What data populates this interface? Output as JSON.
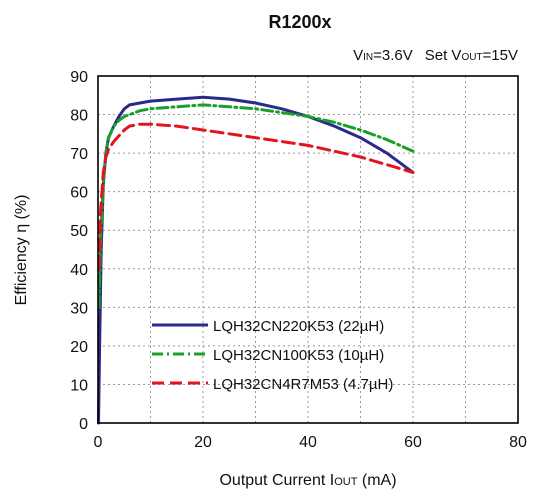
{
  "chart_data": {
    "type": "line",
    "title": "R1200x",
    "subtitle": {
      "vin_main": "V",
      "vin_sub": "IN",
      "vin_rest": "=3.6V",
      "set": "Set V",
      "vout_sub": "OUT",
      "vout_rest": "=15V"
    },
    "xlabel": {
      "main": "Output Current I",
      "sub": "OUT",
      "rest": " (mA)"
    },
    "ylabel": "Efficiency η (%)",
    "xlim": [
      0,
      80
    ],
    "ylim": [
      0,
      90
    ],
    "xticks": [
      "0",
      "20",
      "40",
      "60",
      "80"
    ],
    "yticks": [
      "0",
      "10",
      "20",
      "30",
      "40",
      "50",
      "60",
      "70",
      "80",
      "90"
    ],
    "grid": true,
    "legend_position": "bottom-right",
    "series": [
      {
        "name": "LQH32CN220K53 (22µH)",
        "color": "#2b2a8c",
        "dash": "solid",
        "x": [
          0.1,
          0.3,
          0.6,
          1,
          1.5,
          2,
          3,
          4,
          5,
          6,
          8,
          10,
          15,
          20,
          25,
          30,
          35,
          40,
          45,
          50,
          55,
          60
        ],
        "y": [
          0,
          20,
          45,
          62,
          70,
          74,
          77,
          79.5,
          81.5,
          82.5,
          83,
          83.5,
          84,
          84.5,
          84,
          83,
          81.5,
          79.5,
          77,
          74,
          70,
          65
        ]
      },
      {
        "name": "LQH32CN100K53 (10µH)",
        "color": "#1aa02a",
        "dash": "dashdot",
        "x": [
          0.2,
          0.5,
          1,
          1.5,
          2,
          3,
          4,
          5,
          6,
          8,
          10,
          15,
          20,
          25,
          30,
          35,
          40,
          45,
          50,
          55,
          60
        ],
        "y": [
          30,
          48,
          62,
          70,
          74,
          77,
          78.5,
          79.5,
          80,
          81,
          81.5,
          82,
          82.5,
          82,
          81.5,
          80.5,
          79.5,
          78,
          76,
          73.5,
          70.5
        ]
      },
      {
        "name": "LQH32CN4R7M53 (4.7µH)",
        "color": "#e3141e",
        "dash": "dashed",
        "x": [
          0.2,
          0.5,
          1,
          1.5,
          2,
          3,
          4,
          5,
          6,
          8,
          10,
          15,
          20,
          25,
          30,
          35,
          40,
          45,
          50,
          55,
          60
        ],
        "y": [
          40,
          55,
          65,
          69,
          71,
          73,
          74.5,
          76,
          77,
          77.5,
          77.5,
          77,
          76,
          75,
          74,
          73,
          72,
          70.5,
          69,
          67,
          65
        ]
      }
    ]
  }
}
